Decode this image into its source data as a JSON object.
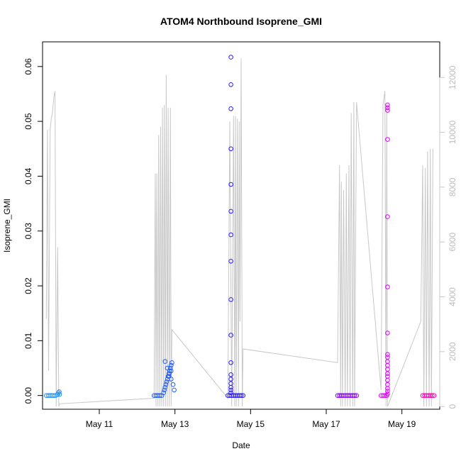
{
  "chart_data": {
    "type": "scatter",
    "title": "ATOM4 Northbound Isoprene_GMI",
    "xlabel": "Date",
    "ylabel": "Isoprene_GMI",
    "xlim": [
      9.5,
      20.0
    ],
    "ylim": [
      -0.0025,
      0.0645
    ],
    "y2lim": [
      -100,
      13300
    ],
    "x_ticks": [
      {
        "value": 11,
        "label": "May 11"
      },
      {
        "value": 13,
        "label": "May 13"
      },
      {
        "value": 15,
        "label": "May 15"
      },
      {
        "value": 17,
        "label": "May 17"
      },
      {
        "value": 19,
        "label": "May 19"
      }
    ],
    "y_ticks": [
      {
        "value": 0.0,
        "label": "0.00"
      },
      {
        "value": 0.01,
        "label": "0.01"
      },
      {
        "value": 0.02,
        "label": "0.02"
      },
      {
        "value": 0.03,
        "label": "0.03"
      },
      {
        "value": 0.04,
        "label": "0.04"
      },
      {
        "value": 0.05,
        "label": "0.05"
      },
      {
        "value": 0.06,
        "label": "0.06"
      }
    ],
    "y2_ticks": [
      {
        "value": 0,
        "label": "0"
      },
      {
        "value": 2000,
        "label": "2000"
      },
      {
        "value": 4000,
        "label": "4000"
      },
      {
        "value": 6000,
        "label": "6000"
      },
      {
        "value": 8000,
        "label": "8000"
      },
      {
        "value": 10000,
        "label": "10000"
      },
      {
        "value": 12000,
        "label": "12000"
      }
    ],
    "grid": false,
    "point_series": [
      {
        "color": "#1e90ff",
        "points": [
          [
            9.6,
            0
          ],
          [
            9.65,
            0
          ],
          [
            9.7,
            0
          ],
          [
            9.75,
            0
          ],
          [
            9.8,
            0
          ],
          [
            9.85,
            0
          ],
          [
            9.9,
            0.0002
          ],
          [
            9.92,
            0.0005
          ],
          [
            9.94,
            0.0007
          ],
          [
            9.95,
            0.0002
          ]
        ]
      },
      {
        "color": "#1e5aff",
        "points": [
          [
            12.45,
            0
          ],
          [
            12.5,
            0
          ],
          [
            12.55,
            0
          ],
          [
            12.6,
            0
          ],
          [
            12.65,
            0
          ],
          [
            12.7,
            0.0005
          ],
          [
            12.72,
            0.001
          ],
          [
            12.74,
            0.0015
          ],
          [
            12.76,
            0.002
          ],
          [
            12.78,
            0.0025
          ],
          [
            12.8,
            0.003
          ],
          [
            12.82,
            0.0035
          ],
          [
            12.84,
            0.004
          ],
          [
            12.86,
            0.0045
          ],
          [
            12.88,
            0.005
          ],
          [
            12.9,
            0.0055
          ],
          [
            12.92,
            0.006
          ],
          [
            12.74,
            0.0062
          ],
          [
            12.8,
            0.005
          ],
          [
            12.85,
            0.004
          ],
          [
            12.9,
            0.003
          ],
          [
            12.95,
            0.002
          ],
          [
            12.98,
            0.001
          ],
          [
            12.9,
            0.0045
          ],
          [
            12.84,
            0.0035
          ]
        ]
      },
      {
        "color": "#2a1aff",
        "points": [
          [
            14.4,
            0
          ],
          [
            14.45,
            0
          ],
          [
            14.5,
            0
          ],
          [
            14.55,
            0
          ],
          [
            14.6,
            0
          ],
          [
            14.65,
            0
          ],
          [
            14.7,
            0
          ],
          [
            14.75,
            0
          ],
          [
            14.8,
            0
          ],
          [
            14.48,
            0.0617
          ],
          [
            14.48,
            0.0567
          ],
          [
            14.48,
            0.0523
          ],
          [
            14.48,
            0.045
          ],
          [
            14.48,
            0.0385
          ],
          [
            14.48,
            0.0336
          ],
          [
            14.48,
            0.0293
          ],
          [
            14.48,
            0.0245
          ],
          [
            14.48,
            0.0175
          ],
          [
            14.48,
            0.011
          ],
          [
            14.48,
            0.006
          ],
          [
            14.48,
            0.0038
          ],
          [
            14.48,
            0.003
          ],
          [
            14.48,
            0.0022
          ],
          [
            14.48,
            0.0015
          ],
          [
            14.48,
            0.001
          ],
          [
            14.48,
            0.0005
          ]
        ]
      },
      {
        "color": "#8a00ff",
        "points": [
          [
            17.3,
            0
          ],
          [
            17.35,
            0
          ],
          [
            17.4,
            0
          ],
          [
            17.45,
            0
          ],
          [
            17.5,
            0
          ],
          [
            17.55,
            0
          ],
          [
            17.6,
            0
          ],
          [
            17.65,
            0
          ],
          [
            17.7,
            0
          ],
          [
            17.75,
            0
          ],
          [
            17.8,
            0
          ]
        ]
      },
      {
        "color": "#e000ff",
        "points": [
          [
            18.45,
            0
          ],
          [
            18.5,
            0
          ],
          [
            18.55,
            0
          ],
          [
            18.6,
            0
          ],
          [
            18.62,
            0.053
          ],
          [
            18.62,
            0.0525
          ],
          [
            18.62,
            0.052
          ],
          [
            18.62,
            0.0467
          ],
          [
            18.62,
            0.0326
          ],
          [
            18.62,
            0.0198
          ],
          [
            18.62,
            0.0114
          ],
          [
            18.62,
            0.0075
          ],
          [
            18.62,
            0.007
          ],
          [
            18.62,
            0.0062
          ],
          [
            18.62,
            0.0055
          ],
          [
            18.62,
            0.0048
          ],
          [
            18.62,
            0.004
          ],
          [
            18.62,
            0.0035
          ],
          [
            18.62,
            0.0028
          ],
          [
            18.62,
            0.002
          ],
          [
            18.62,
            0.0013
          ],
          [
            18.62,
            0.0008
          ],
          [
            18.62,
            0.0003
          ]
        ]
      },
      {
        "color": "#ff00b4",
        "points": [
          [
            19.55,
            0
          ],
          [
            19.6,
            0
          ],
          [
            19.65,
            0
          ],
          [
            19.7,
            0
          ],
          [
            19.75,
            0
          ],
          [
            19.8,
            0
          ],
          [
            19.85,
            0
          ]
        ]
      }
    ],
    "line_series": {
      "color": "#c8c8c8",
      "axis": "right",
      "points": [
        [
          9.6,
          3200
        ],
        [
          9.63,
          10100
        ],
        [
          9.66,
          1300
        ],
        [
          9.7,
          10100
        ],
        [
          9.73,
          10500
        ],
        [
          9.76,
          10700
        ],
        [
          9.8,
          11300
        ],
        [
          9.83,
          11500
        ],
        [
          9.86,
          0
        ],
        [
          9.9,
          5800
        ],
        [
          9.93,
          0
        ],
        [
          9.95,
          100
        ],
        [
          12.45,
          300
        ],
        [
          12.48,
          8500
        ],
        [
          12.5,
          0
        ],
        [
          12.52,
          8500
        ],
        [
          12.55,
          0
        ],
        [
          12.57,
          9900
        ],
        [
          12.6,
          0
        ],
        [
          12.62,
          10200
        ],
        [
          12.65,
          0
        ],
        [
          12.67,
          10900
        ],
        [
          12.7,
          0
        ],
        [
          12.72,
          11000
        ],
        [
          12.75,
          0
        ],
        [
          12.77,
          12100
        ],
        [
          12.8,
          0
        ],
        [
          12.82,
          10900
        ],
        [
          12.85,
          0
        ],
        [
          12.88,
          10900
        ],
        [
          12.9,
          0
        ],
        [
          12.92,
          2800
        ],
        [
          14.4,
          300
        ],
        [
          14.45,
          10400
        ],
        [
          14.5,
          0
        ],
        [
          14.55,
          10600
        ],
        [
          14.58,
          0
        ],
        [
          14.6,
          10600
        ],
        [
          14.62,
          0
        ],
        [
          14.65,
          10500
        ],
        [
          14.68,
          0
        ],
        [
          14.7,
          10400
        ],
        [
          14.72,
          3100
        ],
        [
          14.75,
          12700
        ],
        [
          14.78,
          0
        ],
        [
          14.8,
          2100
        ],
        [
          17.3,
          1600
        ],
        [
          17.35,
          8800
        ],
        [
          17.38,
          0
        ],
        [
          17.4,
          8200
        ],
        [
          17.43,
          0
        ],
        [
          17.46,
          7900
        ],
        [
          17.5,
          0
        ],
        [
          17.53,
          8500
        ],
        [
          17.56,
          0
        ],
        [
          17.6,
          8800
        ],
        [
          17.63,
          0
        ],
        [
          17.66,
          10700
        ],
        [
          17.7,
          0
        ],
        [
          17.73,
          11100
        ],
        [
          17.75,
          0
        ],
        [
          17.8,
          11100
        ],
        [
          18.45,
          600
        ],
        [
          18.5,
          11000
        ],
        [
          18.55,
          11500
        ],
        [
          18.58,
          0
        ],
        [
          18.6,
          11000
        ],
        [
          18.62,
          0
        ],
        [
          19.5,
          3100
        ],
        [
          19.55,
          8800
        ],
        [
          19.58,
          0
        ],
        [
          19.62,
          8700
        ],
        [
          19.65,
          0
        ],
        [
          19.68,
          9300
        ],
        [
          19.72,
          0
        ],
        [
          19.75,
          9400
        ],
        [
          19.78,
          0
        ],
        [
          19.82,
          9400
        ]
      ]
    }
  }
}
